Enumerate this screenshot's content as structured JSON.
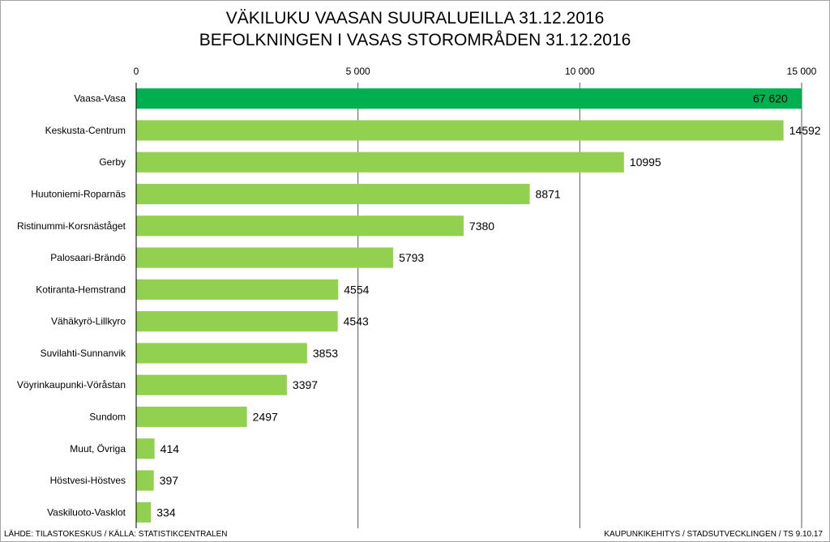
{
  "chart_data": {
    "type": "bar",
    "orientation": "horizontal",
    "title": "VÄKILUKU VAASAN SUURALUEILLA 31.12.2016",
    "subtitle": "BEFOLKNINGEN I VASAS STOROMRÅDEN 31.12.2016",
    "categories": [
      "Vaasa-Vasa",
      "Keskusta-Centrum",
      "Gerby",
      "Huutoniemi-Roparnäs",
      "Ristinummi-Korsnäståget",
      "Palosaari-Brändö",
      "Kotiranta-Hemstrand",
      "Vähäkyrö-Lillkyro",
      "Suvilahti-Sunnanvik",
      "Vöyrinkaupunki-Vöråstan",
      "Sundom",
      "Muut, Övriga",
      "Höstvesi-Höstves",
      "Vaskiluoto-Vasklot"
    ],
    "values": [
      67620,
      14592,
      10995,
      8871,
      7380,
      5793,
      4554,
      4543,
      3853,
      3397,
      2497,
      414,
      397,
      334
    ],
    "value_labels": [
      "67 620",
      "14592",
      "10995",
      "8871",
      "7380",
      "5793",
      "4554",
      "4543",
      "3853",
      "3397",
      "2497",
      "414",
      "397",
      "334"
    ],
    "xlim": [
      0,
      15000
    ],
    "xticks": [
      0,
      5000,
      10000,
      15000
    ],
    "xtick_labels": [
      "0",
      "5 000",
      "10 000",
      "15 000"
    ],
    "xaxis_position": "top",
    "grid": true,
    "legend": "none",
    "colors": {
      "highlight": "#00b050",
      "bar": "#92d050",
      "grid": "#595959"
    }
  },
  "footer": {
    "source": "LÄHDE: TILASTOKESKUS / KÄLLA: STATISTIKCENTRALEN",
    "credit": "KAUPUNKIKEHITYS / STADSUTVECKLINGEN / TS 9.10.17"
  }
}
